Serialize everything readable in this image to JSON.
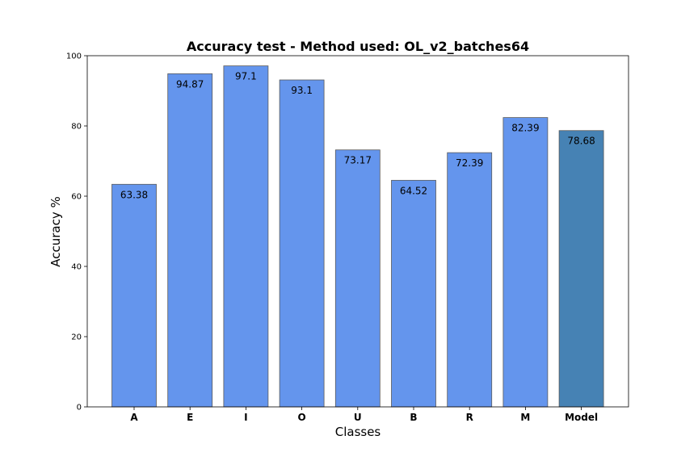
{
  "chart_data": {
    "type": "bar",
    "title": "Accuracy test - Method used: OL_v2_batches64",
    "xlabel": "Classes",
    "ylabel": "Accuracy %",
    "categories": [
      "A",
      "E",
      "I",
      "O",
      "U",
      "B",
      "R",
      "M",
      "Model"
    ],
    "values": [
      63.38,
      94.87,
      97.1,
      93.1,
      73.17,
      64.52,
      72.39,
      82.39,
      78.68
    ],
    "data_labels": [
      "63.38",
      "94.87",
      "97.1",
      "93.1",
      "73.17",
      "64.52",
      "72.39",
      "82.39",
      "78.68"
    ],
    "ylim": [
      0,
      100
    ],
    "yticks": [
      0,
      20,
      40,
      60,
      80,
      100
    ],
    "ytick_labels": [
      "0",
      "20",
      "40",
      "60",
      "80",
      "100"
    ],
    "grid": false,
    "colors": {
      "bar": "#6495ed",
      "highlight_bar": "#4682b4",
      "bar_edge": "#5a5a5a"
    },
    "highlight_category": "Model"
  }
}
